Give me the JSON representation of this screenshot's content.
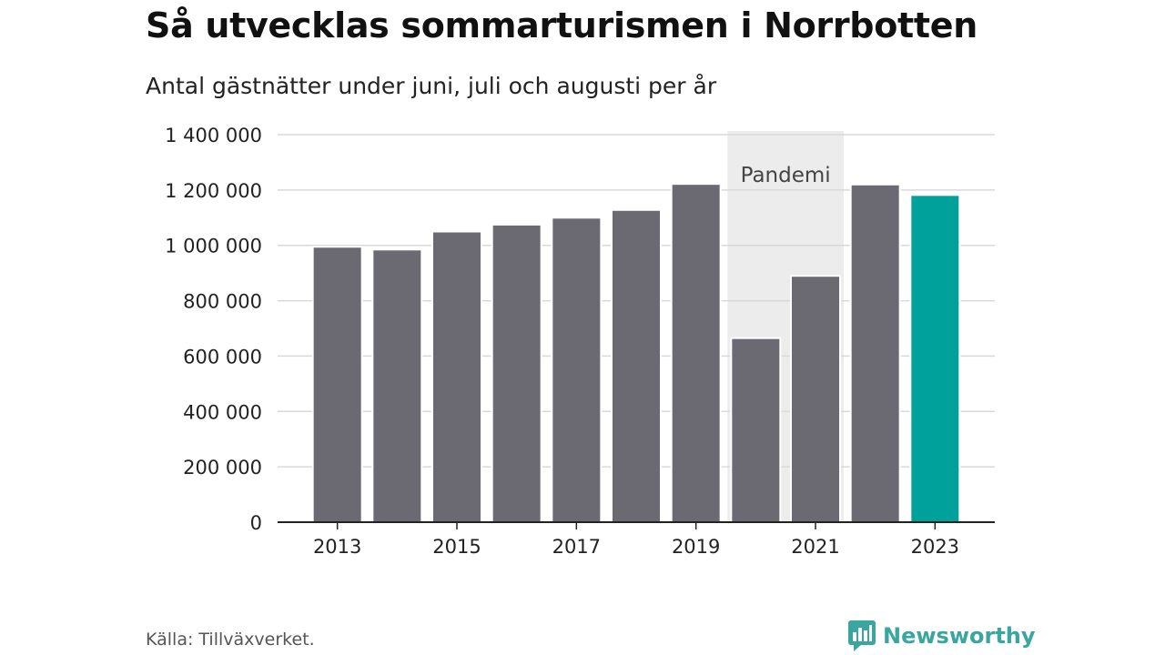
{
  "title": "Så utvecklas sommarturismen i Norrbotten",
  "subtitle": "Antal gästnätter under juni, juli och augusti per år",
  "source": "Källa: Tillväxverket.",
  "brand": "Newsworthy",
  "colors": {
    "bar": "#6b6a72",
    "highlight": "#00a19a",
    "pandemic_band": "#ececec",
    "grid": "#d9d9d9",
    "axis": "#222222",
    "brand": "#3aa6a0"
  },
  "chart_data": {
    "type": "bar",
    "categories": [
      "2013",
      "2014",
      "2015",
      "2016",
      "2017",
      "2018",
      "2019",
      "2020",
      "2021",
      "2022",
      "2023"
    ],
    "values": [
      995000,
      985000,
      1050000,
      1075000,
      1100000,
      1128000,
      1222000,
      665000,
      890000,
      1220000,
      1182000
    ],
    "highlight_category": "2023",
    "ylim": [
      0,
      1400000
    ],
    "yticks": [
      0,
      200000,
      400000,
      600000,
      800000,
      1000000,
      1200000,
      1400000
    ],
    "ytick_labels": [
      "0",
      "200 000",
      "400 000",
      "600 000",
      "800 000",
      "1 000 000",
      "1 200 000",
      "1 400 000"
    ],
    "xtick_labels": [
      "2013",
      "2015",
      "2017",
      "2019",
      "2021",
      "2023"
    ],
    "annotation": {
      "label": "Pandemi",
      "categories": [
        "2020",
        "2021"
      ]
    },
    "grid": true,
    "legend": "none"
  }
}
